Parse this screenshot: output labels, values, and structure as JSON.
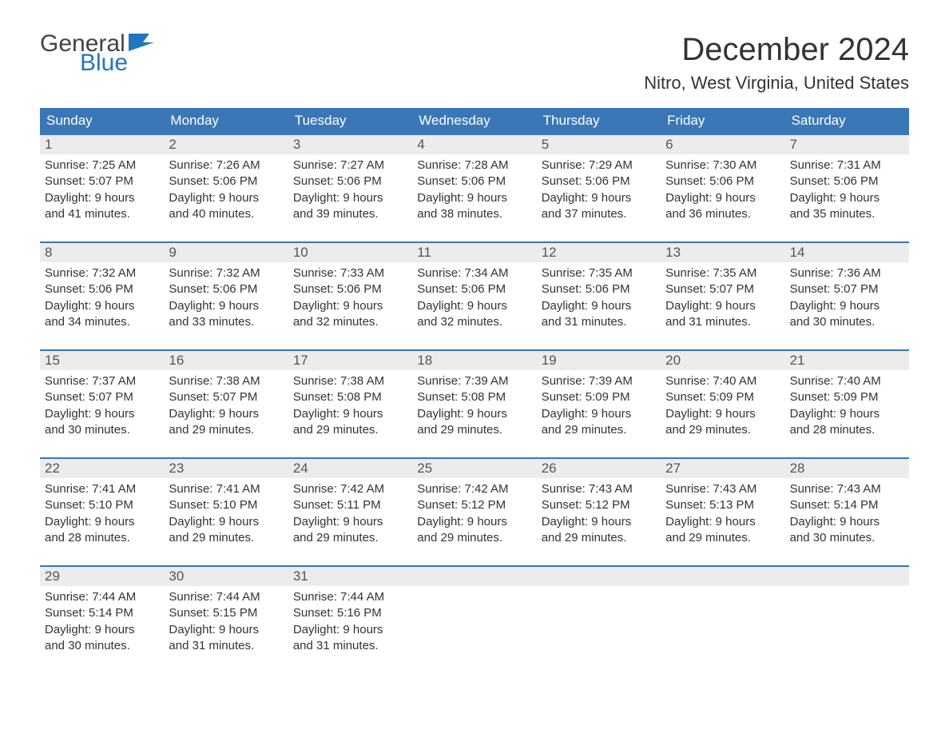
{
  "brand": {
    "general": "General",
    "blue": "Blue",
    "flag_color": "#2176c0"
  },
  "title": "December 2024",
  "location": "Nitro, West Virginia, United States",
  "colors": {
    "header_bg": "#3a77b6",
    "header_text": "#ffffff",
    "daynum_bg": "#ececec",
    "text": "#333333",
    "rule": "#3a77b6"
  },
  "weekdays": [
    "Sunday",
    "Monday",
    "Tuesday",
    "Wednesday",
    "Thursday",
    "Friday",
    "Saturday"
  ],
  "weeks": [
    [
      {
        "n": "1",
        "sr": "Sunrise: 7:25 AM",
        "ss": "Sunset: 5:07 PM",
        "d1": "Daylight: 9 hours",
        "d2": "and 41 minutes."
      },
      {
        "n": "2",
        "sr": "Sunrise: 7:26 AM",
        "ss": "Sunset: 5:06 PM",
        "d1": "Daylight: 9 hours",
        "d2": "and 40 minutes."
      },
      {
        "n": "3",
        "sr": "Sunrise: 7:27 AM",
        "ss": "Sunset: 5:06 PM",
        "d1": "Daylight: 9 hours",
        "d2": "and 39 minutes."
      },
      {
        "n": "4",
        "sr": "Sunrise: 7:28 AM",
        "ss": "Sunset: 5:06 PM",
        "d1": "Daylight: 9 hours",
        "d2": "and 38 minutes."
      },
      {
        "n": "5",
        "sr": "Sunrise: 7:29 AM",
        "ss": "Sunset: 5:06 PM",
        "d1": "Daylight: 9 hours",
        "d2": "and 37 minutes."
      },
      {
        "n": "6",
        "sr": "Sunrise: 7:30 AM",
        "ss": "Sunset: 5:06 PM",
        "d1": "Daylight: 9 hours",
        "d2": "and 36 minutes."
      },
      {
        "n": "7",
        "sr": "Sunrise: 7:31 AM",
        "ss": "Sunset: 5:06 PM",
        "d1": "Daylight: 9 hours",
        "d2": "and 35 minutes."
      }
    ],
    [
      {
        "n": "8",
        "sr": "Sunrise: 7:32 AM",
        "ss": "Sunset: 5:06 PM",
        "d1": "Daylight: 9 hours",
        "d2": "and 34 minutes."
      },
      {
        "n": "9",
        "sr": "Sunrise: 7:32 AM",
        "ss": "Sunset: 5:06 PM",
        "d1": "Daylight: 9 hours",
        "d2": "and 33 minutes."
      },
      {
        "n": "10",
        "sr": "Sunrise: 7:33 AM",
        "ss": "Sunset: 5:06 PM",
        "d1": "Daylight: 9 hours",
        "d2": "and 32 minutes."
      },
      {
        "n": "11",
        "sr": "Sunrise: 7:34 AM",
        "ss": "Sunset: 5:06 PM",
        "d1": "Daylight: 9 hours",
        "d2": "and 32 minutes."
      },
      {
        "n": "12",
        "sr": "Sunrise: 7:35 AM",
        "ss": "Sunset: 5:06 PM",
        "d1": "Daylight: 9 hours",
        "d2": "and 31 minutes."
      },
      {
        "n": "13",
        "sr": "Sunrise: 7:35 AM",
        "ss": "Sunset: 5:07 PM",
        "d1": "Daylight: 9 hours",
        "d2": "and 31 minutes."
      },
      {
        "n": "14",
        "sr": "Sunrise: 7:36 AM",
        "ss": "Sunset: 5:07 PM",
        "d1": "Daylight: 9 hours",
        "d2": "and 30 minutes."
      }
    ],
    [
      {
        "n": "15",
        "sr": "Sunrise: 7:37 AM",
        "ss": "Sunset: 5:07 PM",
        "d1": "Daylight: 9 hours",
        "d2": "and 30 minutes."
      },
      {
        "n": "16",
        "sr": "Sunrise: 7:38 AM",
        "ss": "Sunset: 5:07 PM",
        "d1": "Daylight: 9 hours",
        "d2": "and 29 minutes."
      },
      {
        "n": "17",
        "sr": "Sunrise: 7:38 AM",
        "ss": "Sunset: 5:08 PM",
        "d1": "Daylight: 9 hours",
        "d2": "and 29 minutes."
      },
      {
        "n": "18",
        "sr": "Sunrise: 7:39 AM",
        "ss": "Sunset: 5:08 PM",
        "d1": "Daylight: 9 hours",
        "d2": "and 29 minutes."
      },
      {
        "n": "19",
        "sr": "Sunrise: 7:39 AM",
        "ss": "Sunset: 5:09 PM",
        "d1": "Daylight: 9 hours",
        "d2": "and 29 minutes."
      },
      {
        "n": "20",
        "sr": "Sunrise: 7:40 AM",
        "ss": "Sunset: 5:09 PM",
        "d1": "Daylight: 9 hours",
        "d2": "and 29 minutes."
      },
      {
        "n": "21",
        "sr": "Sunrise: 7:40 AM",
        "ss": "Sunset: 5:09 PM",
        "d1": "Daylight: 9 hours",
        "d2": "and 28 minutes."
      }
    ],
    [
      {
        "n": "22",
        "sr": "Sunrise: 7:41 AM",
        "ss": "Sunset: 5:10 PM",
        "d1": "Daylight: 9 hours",
        "d2": "and 28 minutes."
      },
      {
        "n": "23",
        "sr": "Sunrise: 7:41 AM",
        "ss": "Sunset: 5:10 PM",
        "d1": "Daylight: 9 hours",
        "d2": "and 29 minutes."
      },
      {
        "n": "24",
        "sr": "Sunrise: 7:42 AM",
        "ss": "Sunset: 5:11 PM",
        "d1": "Daylight: 9 hours",
        "d2": "and 29 minutes."
      },
      {
        "n": "25",
        "sr": "Sunrise: 7:42 AM",
        "ss": "Sunset: 5:12 PM",
        "d1": "Daylight: 9 hours",
        "d2": "and 29 minutes."
      },
      {
        "n": "26",
        "sr": "Sunrise: 7:43 AM",
        "ss": "Sunset: 5:12 PM",
        "d1": "Daylight: 9 hours",
        "d2": "and 29 minutes."
      },
      {
        "n": "27",
        "sr": "Sunrise: 7:43 AM",
        "ss": "Sunset: 5:13 PM",
        "d1": "Daylight: 9 hours",
        "d2": "and 29 minutes."
      },
      {
        "n": "28",
        "sr": "Sunrise: 7:43 AM",
        "ss": "Sunset: 5:14 PM",
        "d1": "Daylight: 9 hours",
        "d2": "and 30 minutes."
      }
    ],
    [
      {
        "n": "29",
        "sr": "Sunrise: 7:44 AM",
        "ss": "Sunset: 5:14 PM",
        "d1": "Daylight: 9 hours",
        "d2": "and 30 minutes."
      },
      {
        "n": "30",
        "sr": "Sunrise: 7:44 AM",
        "ss": "Sunset: 5:15 PM",
        "d1": "Daylight: 9 hours",
        "d2": "and 31 minutes."
      },
      {
        "n": "31",
        "sr": "Sunrise: 7:44 AM",
        "ss": "Sunset: 5:16 PM",
        "d1": "Daylight: 9 hours",
        "d2": "and 31 minutes."
      },
      null,
      null,
      null,
      null
    ]
  ]
}
